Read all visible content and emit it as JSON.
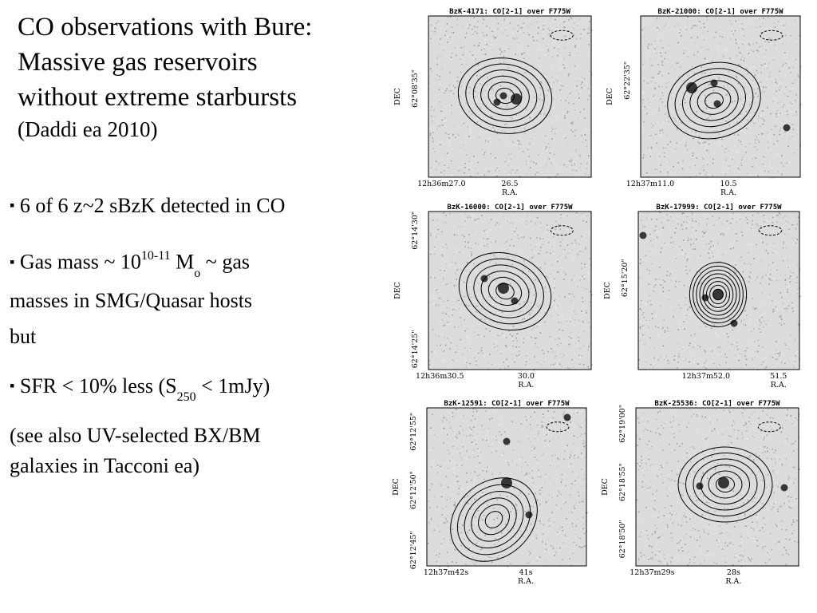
{
  "title": {
    "line1": "CO observations with Bure:",
    "line2": "Massive gas reservoirs",
    "line3": "without extreme starbursts",
    "citation": "(Daddi ea 2010)"
  },
  "bullets": {
    "marker": "▪",
    "b1": "6 of 6 z~2 sBzK detected in CO",
    "b2": {
      "prefix": "Gas mass ~ 10",
      "exp": "10-11",
      "unit": " M",
      "unit_sub": "o",
      "suffix": " ~ gas",
      "line2": "masses in SMG/Quasar hosts"
    },
    "but": "but",
    "b3": {
      "prefix": "SFR < 10% less  (S",
      "sub": "250",
      "suffix": " < 1mJy)"
    },
    "note_line1": "(see also UV-selected BX/BM",
    "note_line2": "galaxies in Tacconi ea)"
  },
  "panels": [
    {
      "title": "BzK-4171: CO[2-1] over F775W",
      "dec": "62°08'35\"",
      "ra": [
        "12h36m27.0",
        "26.5"
      ],
      "ra_axis": "R.A.",
      "dec_axis": "DEC"
    },
    {
      "title": "BzK-21000: CO[2-1] over F775W",
      "dec": "62°22'35\"",
      "ra": [
        "12h37m11.0",
        "10.5"
      ],
      "ra_axis": "R.A.",
      "dec_axis": "DEC"
    },
    {
      "title": "BzK-16000: CO[2-1] over F775W",
      "dec": "62°14'30\" / 62°14'25\"",
      "ra": [
        "12h36m30.5",
        "30.0"
      ],
      "ra_axis": "R.A.",
      "dec_axis": "DEC"
    },
    {
      "title": "BzK-17999: CO[2-1] over F775W",
      "dec": "62°15'20\"",
      "ra": [
        "12h37m52.0",
        "51.5"
      ],
      "ra_axis": "R.A.",
      "dec_axis": "DEC"
    },
    {
      "title": "BzK-12591: CO[2-1] over F775W",
      "dec": "62°12'55\" / 62°12'50\" / 62°12'45\"",
      "ra": [
        "12h37m42s",
        "41s"
      ],
      "ra_axis": "R.A.",
      "dec_axis": "DEC"
    },
    {
      "title": "BzK-25536: CO[2-1] over F775W",
      "dec": "62°19'00\" / 62°18'55\" / 62°18'50\"",
      "ra": [
        "12h37m29s",
        "28s"
      ],
      "ra_axis": "R.A.",
      "dec_axis": "DEC"
    }
  ]
}
